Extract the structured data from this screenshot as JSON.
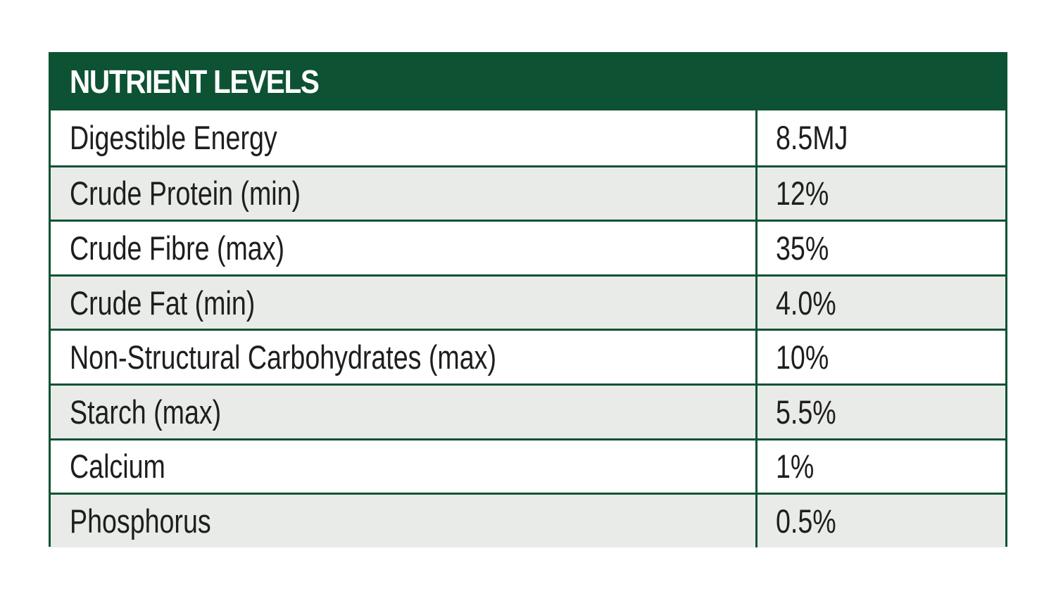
{
  "table": {
    "title": "NUTRIENT LEVELS",
    "rows": [
      {
        "name": "Digestible Energy",
        "value": "8.5MJ"
      },
      {
        "name": "Crude Protein (min)",
        "value": "12%"
      },
      {
        "name": "Crude Fibre (max)",
        "value": "35%"
      },
      {
        "name": "Crude Fat (min)",
        "value": "4.0%"
      },
      {
        "name": "Non-Structural Carbohydrates (max)",
        "value": "10%"
      },
      {
        "name": "Starch (max)",
        "value": "5.5%"
      },
      {
        "name": "Calcium",
        "value": "1%"
      },
      {
        "name": "Phosphorus",
        "value": "0.5%"
      }
    ]
  },
  "colors": {
    "header_background": "#0c5233",
    "border": "#0c5233",
    "shaded_row": "#e9ebe8",
    "text": "#1e1e1e"
  }
}
